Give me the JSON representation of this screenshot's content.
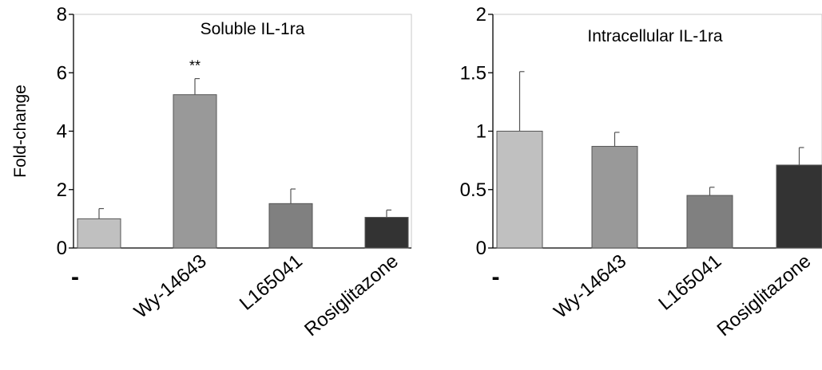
{
  "chart_data": [
    {
      "type": "bar",
      "title": "Soluble IL-1ra",
      "ylabel": "Fold-change",
      "xlabel": "",
      "categories": [
        "-",
        "Wy-14643",
        "L165041",
        "Rosiglitazone"
      ],
      "values": [
        1.0,
        5.25,
        1.52,
        1.05
      ],
      "errors": [
        0.35,
        0.55,
        0.5,
        0.25
      ],
      "annotations": [
        "",
        "**",
        "",
        ""
      ],
      "bar_colors": [
        "#c0c0c0",
        "#999999",
        "#808080",
        "#333333"
      ],
      "ylim": [
        0,
        8
      ],
      "yticks": [
        0,
        2,
        4,
        6,
        8
      ],
      "ytick_labels": [
        "0",
        "2",
        "4",
        "6",
        "8"
      ],
      "grid": false,
      "legend": "none"
    },
    {
      "type": "bar",
      "title": "Intracellular IL-1ra",
      "ylabel": "",
      "xlabel": "",
      "categories": [
        "-",
        "Wy-14643",
        "L165041",
        "Rosiglitazone"
      ],
      "values": [
        1.0,
        0.87,
        0.45,
        0.71
      ],
      "errors": [
        0.51,
        0.12,
        0.07,
        0.15
      ],
      "annotations": [
        "",
        "",
        "",
        ""
      ],
      "bar_colors": [
        "#c0c0c0",
        "#999999",
        "#808080",
        "#333333"
      ],
      "ylim": [
        0,
        2
      ],
      "yticks": [
        0,
        0.5,
        1,
        1.5,
        2
      ],
      "ytick_labels": [
        "0",
        "0.5",
        "1",
        "1.5",
        "2"
      ],
      "grid": false,
      "legend": "none"
    }
  ]
}
